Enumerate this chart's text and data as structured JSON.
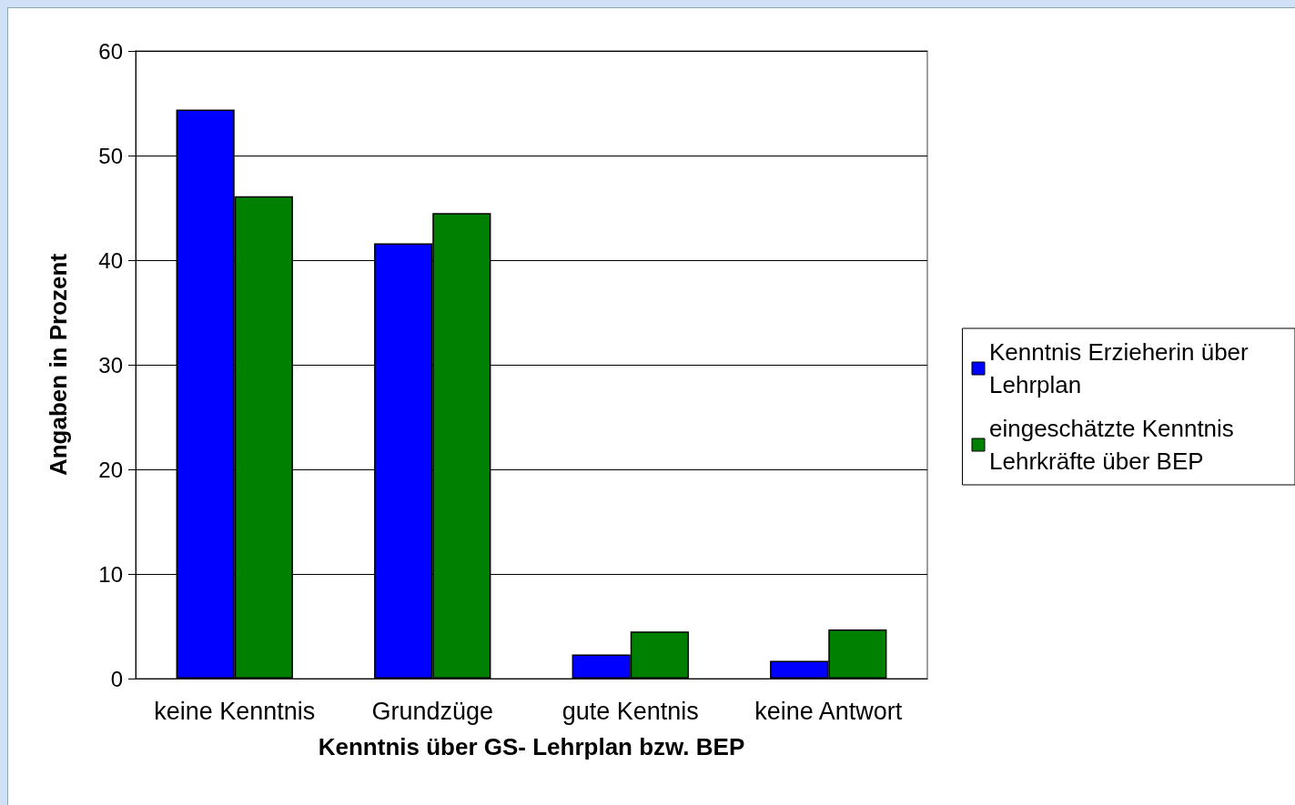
{
  "chart_data": {
    "type": "bar",
    "xlabel": "Kenntnis über GS- Lehrplan bzw. BEP",
    "ylabel": "Angaben in Prozent",
    "categories": [
      "keine Kenntnis",
      "Grundzüge",
      "gute Kentnis",
      "keine Antwort"
    ],
    "series": [
      {
        "name": "Kenntnis Erzieherin über Lehrplan",
        "color": "#0000ff",
        "values": [
          54.4,
          41.6,
          2.3,
          1.7
        ]
      },
      {
        "name": "eingeschätzte Kenntnis Lehrkräfte über BEP",
        "color": "#008000",
        "values": [
          46.1,
          44.5,
          4.5,
          4.7
        ]
      }
    ],
    "ylim": [
      0,
      60
    ],
    "yticks": [
      0,
      10,
      20,
      30,
      40,
      50,
      60
    ],
    "grid": "y",
    "legend": "right"
  }
}
